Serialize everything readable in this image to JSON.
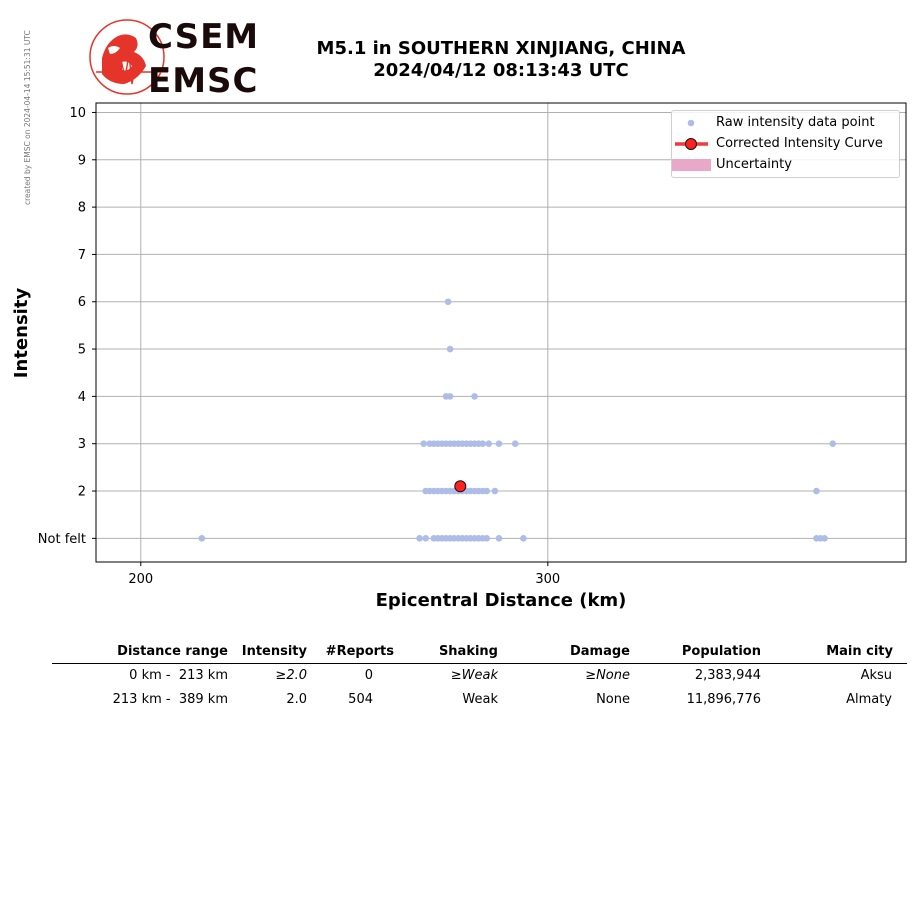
{
  "credit": "created by EMSC on 2024-04-14 15:51:31 UTC",
  "logo": {
    "line1": "CSEM",
    "line2": "EMSC"
  },
  "title": {
    "line1": "M5.1 in SOUTHERN XINJIANG, CHINA",
    "line2": "2024/04/12 08:13:43 UTC"
  },
  "legend": {
    "raw": "Raw intensity data point",
    "curve": "Corrected Intensity Curve",
    "uncertainty": "Uncertainty"
  },
  "colors": {
    "raw": "#aebde8",
    "curve": "#ff2020",
    "uncertainty": "#e8a8c8",
    "grid": "#b0b0b0"
  },
  "chart_data": {
    "type": "scatter",
    "xlabel": "Epicentral Distance (km)",
    "ylabel": "Intensity",
    "xlim": [
      189,
      388
    ],
    "ylim": [
      0.5,
      10.2
    ],
    "xticks": [
      200,
      300
    ],
    "yticks": [
      {
        "value": 1,
        "label": "Not felt"
      },
      {
        "value": 2,
        "label": "2"
      },
      {
        "value": 3,
        "label": "3"
      },
      {
        "value": 4,
        "label": "4"
      },
      {
        "value": 5,
        "label": "5"
      },
      {
        "value": 6,
        "label": "6"
      },
      {
        "value": 7,
        "label": "7"
      },
      {
        "value": 8,
        "label": "8"
      },
      {
        "value": 9,
        "label": "9"
      },
      {
        "value": 10,
        "label": "10"
      }
    ],
    "grid": true,
    "legend_position": "top-right",
    "series": [
      {
        "name": "Raw intensity data point",
        "type": "scatter",
        "points": [
          {
            "x": 275.5,
            "y": 6
          },
          {
            "x": 276,
            "y": 5
          },
          {
            "x": 275,
            "y": 4
          },
          {
            "x": 276,
            "y": 4
          },
          {
            "x": 282,
            "y": 4
          },
          {
            "x": 269.5,
            "y": 3
          },
          {
            "x": 271,
            "y": 3
          },
          {
            "x": 272,
            "y": 3
          },
          {
            "x": 273,
            "y": 3
          },
          {
            "x": 274,
            "y": 3
          },
          {
            "x": 275,
            "y": 3
          },
          {
            "x": 276,
            "y": 3
          },
          {
            "x": 277,
            "y": 3
          },
          {
            "x": 278,
            "y": 3
          },
          {
            "x": 279,
            "y": 3
          },
          {
            "x": 280,
            "y": 3
          },
          {
            "x": 281,
            "y": 3
          },
          {
            "x": 282,
            "y": 3
          },
          {
            "x": 283,
            "y": 3
          },
          {
            "x": 284,
            "y": 3
          },
          {
            "x": 285.5,
            "y": 3
          },
          {
            "x": 288,
            "y": 3
          },
          {
            "x": 292,
            "y": 3
          },
          {
            "x": 370,
            "y": 3
          },
          {
            "x": 270,
            "y": 2
          },
          {
            "x": 271,
            "y": 2
          },
          {
            "x": 272,
            "y": 2
          },
          {
            "x": 273,
            "y": 2
          },
          {
            "x": 274,
            "y": 2
          },
          {
            "x": 275,
            "y": 2
          },
          {
            "x": 276,
            "y": 2
          },
          {
            "x": 277,
            "y": 2
          },
          {
            "x": 278,
            "y": 2
          },
          {
            "x": 279,
            "y": 2
          },
          {
            "x": 280,
            "y": 2
          },
          {
            "x": 281,
            "y": 2
          },
          {
            "x": 282,
            "y": 2
          },
          {
            "x": 283,
            "y": 2
          },
          {
            "x": 284,
            "y": 2
          },
          {
            "x": 285,
            "y": 2
          },
          {
            "x": 287,
            "y": 2
          },
          {
            "x": 366,
            "y": 2
          },
          {
            "x": 215,
            "y": 1
          },
          {
            "x": 268.5,
            "y": 1
          },
          {
            "x": 270,
            "y": 1
          },
          {
            "x": 272,
            "y": 1
          },
          {
            "x": 273,
            "y": 1
          },
          {
            "x": 274,
            "y": 1
          },
          {
            "x": 275,
            "y": 1
          },
          {
            "x": 276,
            "y": 1
          },
          {
            "x": 277,
            "y": 1
          },
          {
            "x": 278,
            "y": 1
          },
          {
            "x": 279,
            "y": 1
          },
          {
            "x": 280,
            "y": 1
          },
          {
            "x": 281,
            "y": 1
          },
          {
            "x": 282,
            "y": 1
          },
          {
            "x": 283,
            "y": 1
          },
          {
            "x": 284,
            "y": 1
          },
          {
            "x": 285,
            "y": 1
          },
          {
            "x": 288,
            "y": 1
          },
          {
            "x": 294,
            "y": 1
          },
          {
            "x": 366,
            "y": 1
          },
          {
            "x": 367,
            "y": 1
          },
          {
            "x": 368,
            "y": 1
          }
        ]
      },
      {
        "name": "Corrected Intensity Curve",
        "type": "point",
        "points": [
          {
            "x": 278.5,
            "y": 2.1
          }
        ]
      }
    ]
  },
  "table": {
    "headers": [
      "Distance range",
      "Intensity",
      "#Reports",
      "Shaking",
      "Damage",
      "Population",
      "Main city"
    ],
    "rows": [
      [
        "0 km -  213 km",
        "≥2.0",
        "0",
        "≥Weak",
        "≥None",
        "2,383,944",
        "Aksu"
      ],
      [
        "213 km -  389 km",
        "2.0",
        "504",
        "Weak",
        "None",
        "11,896,776",
        "Almaty"
      ]
    ]
  }
}
